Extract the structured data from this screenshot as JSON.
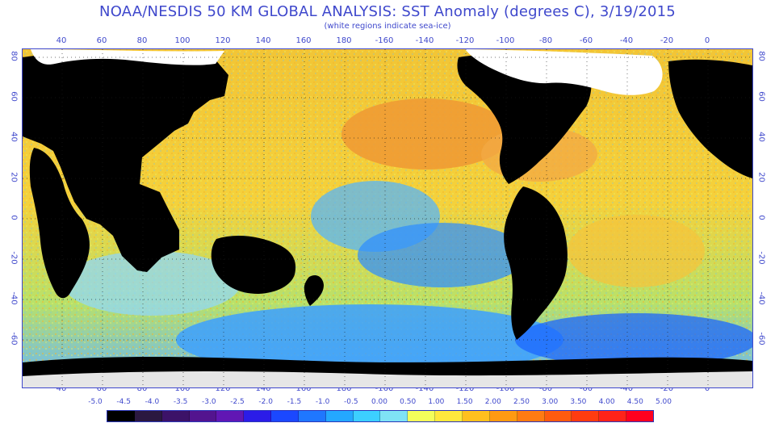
{
  "title": "NOAA/NESDIS 50 KM GLOBAL ANALYSIS: SST Anomaly (degrees C), 3/19/2015",
  "subtitle": "(white regions indicate sea-ice)",
  "axes": {
    "longitude_ticks": [
      "40",
      "60",
      "80",
      "100",
      "120",
      "140",
      "160",
      "180",
      "-160",
      "-140",
      "-120",
      "-100",
      "-80",
      "-60",
      "-40",
      "-20",
      "0"
    ],
    "latitude_ticks": [
      "80",
      "60",
      "40",
      "20",
      "0",
      "-20",
      "-40",
      "-60"
    ]
  },
  "legend": {
    "labels": [
      "-5.0",
      "-4.5",
      "-4.0",
      "-3.5",
      "-3.0",
      "-2.5",
      "-2.0",
      "-1.5",
      "-1.0",
      "-0.5",
      "0.00",
      "0.50",
      "1.00",
      "1.50",
      "2.00",
      "2.50",
      "3.00",
      "3.50",
      "4.00",
      "4.50",
      "5.00"
    ],
    "colors": [
      "#000000",
      "#2b1840",
      "#3c1268",
      "#53148f",
      "#6117b4",
      "#2b1ce8",
      "#1b48ff",
      "#1f77ff",
      "#24a8ff",
      "#3cd0ff",
      "#7fe3f5",
      "#f3ff5a",
      "#ffe83d",
      "#ffc01f",
      "#ff9a12",
      "#ff7b12",
      "#ff5b0f",
      "#ff3c10",
      "#ff2319",
      "#ff001f"
    ]
  },
  "map": {
    "region": "Global sea surface temperature anomaly",
    "land_color": "#000000",
    "sea_ice_color": "#ffffff",
    "ocean_colors": {
      "warm": "#f3c928",
      "very_warm": "#ef9f2c",
      "near_zero": "#d8f06a",
      "cool": "#6fc8ff",
      "colder": "#1a8cff",
      "coldest": "#1a2cff"
    }
  }
}
